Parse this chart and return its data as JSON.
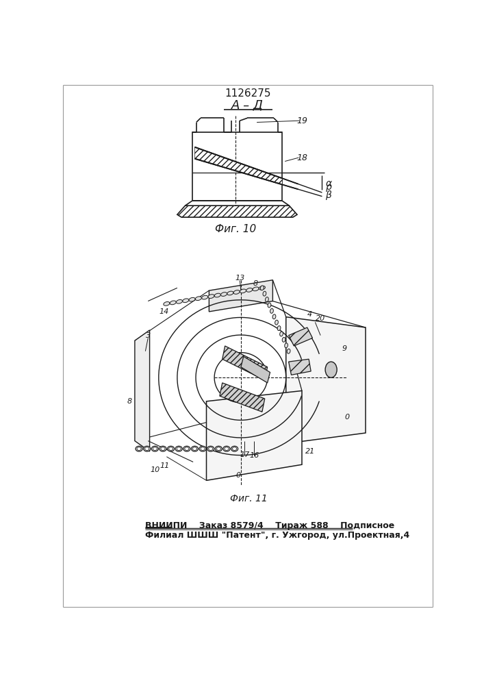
{
  "patent_number": "1126275",
  "fig10_label": "А – Д",
  "fig10_caption": "Фиг. 10",
  "fig11_caption": "Фиг. 11",
  "footer_line1": "ВНИИПИ    Заказ 8579/4    Тираж 588    Подписное",
  "footer_line2": "Филиал ШШШ \"Патент\", г. Ужгород, ул.Проектная,4",
  "bg_color": "#ffffff",
  "line_color": "#1a1a1a",
  "fig_width": 7.07,
  "fig_height": 10.0,
  "dpi": 100
}
